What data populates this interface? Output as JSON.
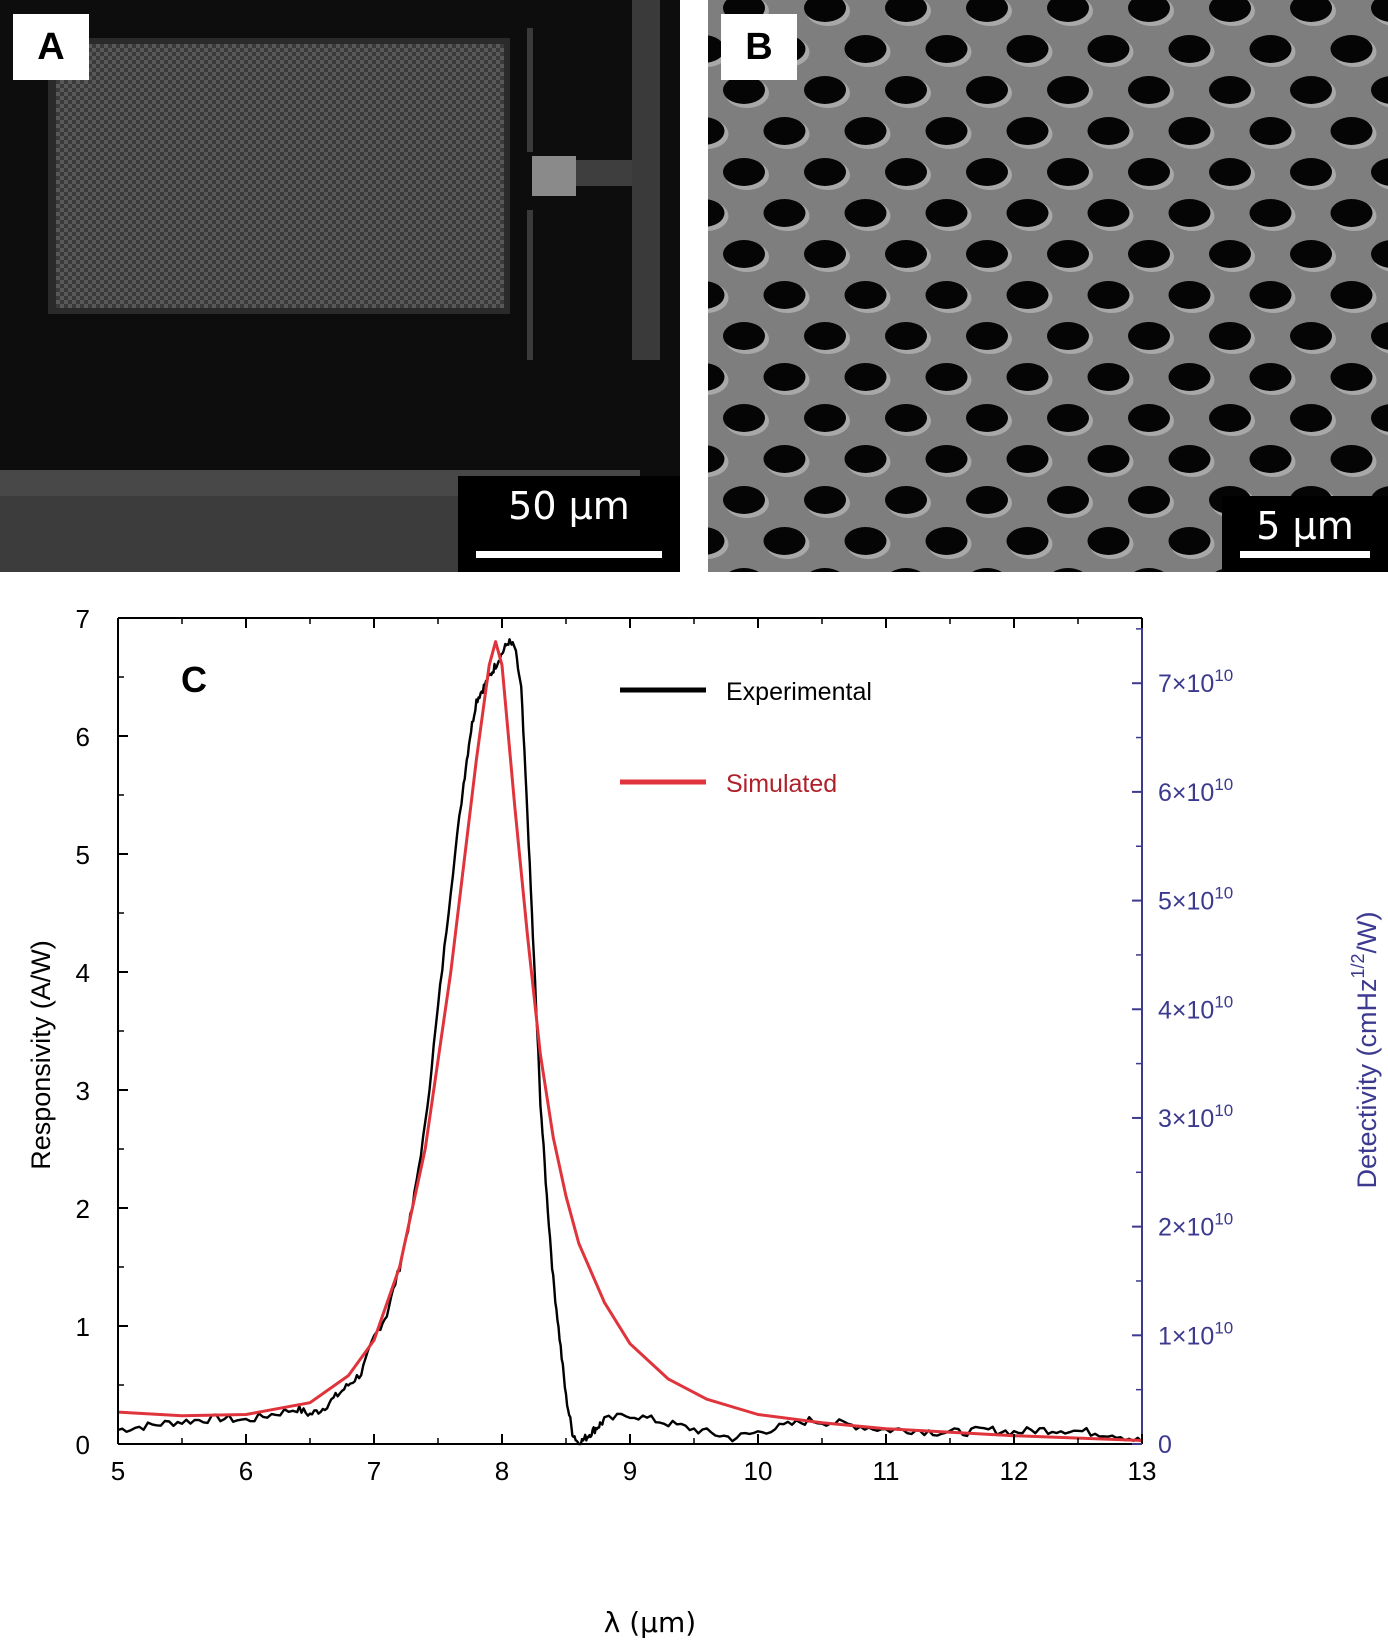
{
  "panels": {
    "a": {
      "label": "A",
      "scalebar": "50 µm"
    },
    "b": {
      "label": "B",
      "scalebar": "5 µm"
    },
    "c": {
      "label": "C"
    }
  },
  "chart_data": {
    "type": "line",
    "xlabel": "λ (µm)",
    "ylabel": "Responsivity (A/W)",
    "y2label": "Detectivity (cmHz1/2/W)",
    "xlim": [
      5,
      13
    ],
    "ylim": [
      0,
      7
    ],
    "y2lim": [
      0,
      76000000000.0
    ],
    "x_ticks": [
      "5",
      "6",
      "7",
      "8",
      "9",
      "10",
      "11",
      "12",
      "13"
    ],
    "y_ticks": [
      "0",
      "1",
      "2",
      "3",
      "4",
      "5",
      "6",
      "7"
    ],
    "y2_ticks": [
      {
        "value": 0,
        "label": "0"
      },
      {
        "value": 10000000000.0,
        "label": "1×1010"
      },
      {
        "value": 20000000000.0,
        "label": "2×1010"
      },
      {
        "value": 30000000000.0,
        "label": "3×1010"
      },
      {
        "value": 40000000000.0,
        "label": "4×1010"
      },
      {
        "value": 50000000000.0,
        "label": "5×1010"
      },
      {
        "value": 60000000000.0,
        "label": "6×1010"
      },
      {
        "value": 70000000000.0,
        "label": "7×1010"
      }
    ],
    "legend_placement": "top-right",
    "series": [
      {
        "name": "Experimental",
        "color": "#000000",
        "x": [
          5.0,
          5.2,
          5.4,
          5.6,
          5.8,
          6.0,
          6.2,
          6.4,
          6.5,
          6.6,
          6.7,
          6.8,
          6.9,
          7.0,
          7.1,
          7.2,
          7.3,
          7.4,
          7.5,
          7.6,
          7.7,
          7.75,
          7.8,
          7.85,
          7.9,
          7.95,
          8.0,
          8.05,
          8.1,
          8.15,
          8.2,
          8.25,
          8.3,
          8.35,
          8.4,
          8.45,
          8.5,
          8.55,
          8.6,
          8.65,
          8.7,
          8.75,
          8.8,
          9.0,
          9.2,
          9.4,
          9.6,
          9.8,
          10.0,
          10.2,
          10.4,
          10.6,
          10.8,
          11.0,
          11.2,
          11.4,
          11.6,
          11.8,
          12.0,
          12.2,
          12.4,
          12.6,
          12.8,
          13.0
        ],
        "y": [
          0.12,
          0.15,
          0.18,
          0.2,
          0.22,
          0.2,
          0.25,
          0.3,
          0.25,
          0.3,
          0.4,
          0.5,
          0.6,
          0.9,
          1.1,
          1.5,
          2.0,
          2.7,
          3.7,
          4.7,
          5.6,
          6.0,
          6.3,
          6.4,
          6.5,
          6.6,
          6.7,
          6.8,
          6.75,
          6.4,
          5.3,
          4.1,
          2.9,
          2.1,
          1.4,
          0.9,
          0.4,
          0.1,
          0.0,
          0.05,
          0.1,
          0.15,
          0.2,
          0.25,
          0.2,
          0.15,
          0.1,
          0.05,
          0.1,
          0.15,
          0.2,
          0.18,
          0.15,
          0.12,
          0.12,
          0.1,
          0.1,
          0.12,
          0.1,
          0.12,
          0.12,
          0.1,
          0.08,
          0.02
        ]
      },
      {
        "name": "Simulated",
        "color": "#e0343c",
        "x": [
          5.0,
          5.5,
          6.0,
          6.5,
          6.8,
          7.0,
          7.2,
          7.4,
          7.6,
          7.8,
          7.9,
          7.95,
          8.0,
          8.1,
          8.2,
          8.3,
          8.4,
          8.5,
          8.6,
          8.8,
          9.0,
          9.3,
          9.6,
          10.0,
          10.5,
          11.0,
          12.0,
          13.0
        ],
        "y": [
          0.27,
          0.24,
          0.25,
          0.35,
          0.58,
          0.88,
          1.5,
          2.5,
          4.0,
          5.8,
          6.6,
          6.8,
          6.6,
          5.4,
          4.3,
          3.3,
          2.6,
          2.1,
          1.7,
          1.2,
          0.85,
          0.55,
          0.38,
          0.25,
          0.18,
          0.13,
          0.07,
          0.03
        ]
      }
    ]
  }
}
